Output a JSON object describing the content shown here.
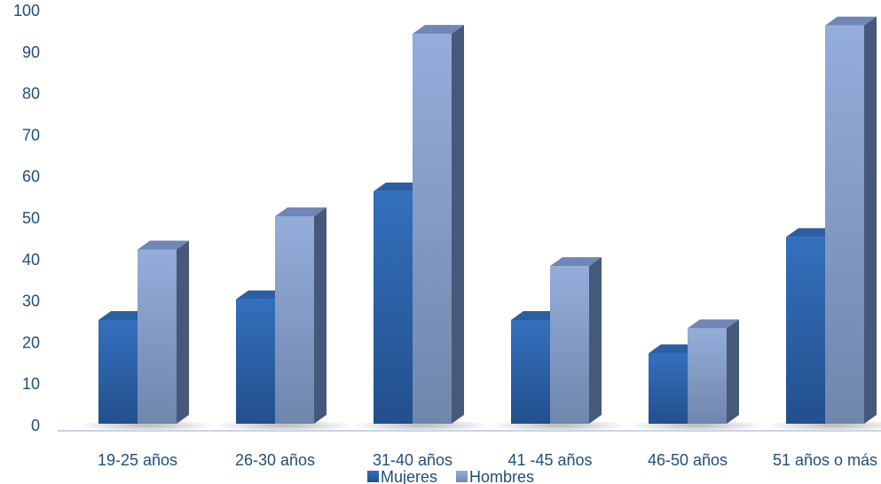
{
  "chart_data": {
    "type": "bar",
    "style": "3d-clustered-column",
    "categories": [
      "19-25 años",
      "26-30 años",
      "31-40 años",
      "41 -45 años",
      "46-50 años",
      "51 años o más"
    ],
    "series": [
      {
        "name": "Mujeres",
        "values": [
          25,
          30,
          56,
          25,
          17,
          45
        ],
        "color": "#2e64a8"
      },
      {
        "name": "Hombres",
        "values": [
          42,
          50,
          94,
          38,
          23,
          96
        ],
        "color": "#8ea9d6"
      }
    ],
    "title": "",
    "xlabel": "",
    "ylabel": "",
    "ylim": [
      0,
      100
    ],
    "yticks": [
      0,
      10,
      20,
      30,
      40,
      50,
      60,
      70,
      80,
      90,
      100
    ],
    "grid": false,
    "legend": "bottom"
  }
}
